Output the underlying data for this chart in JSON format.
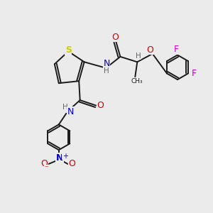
{
  "bg_color": "#ebebeb",
  "bond_color": "#1a1a1a",
  "bond_width": 1.4,
  "S_color": "#cccc00",
  "N_color": "#0000cc",
  "O_color": "#cc0000",
  "F_color": "#cc00cc",
  "H_color": "#666666",
  "figsize": [
    3.0,
    3.0
  ],
  "dpi": 100,
  "xlim": [
    0,
    10
  ],
  "ylim": [
    0,
    10
  ]
}
